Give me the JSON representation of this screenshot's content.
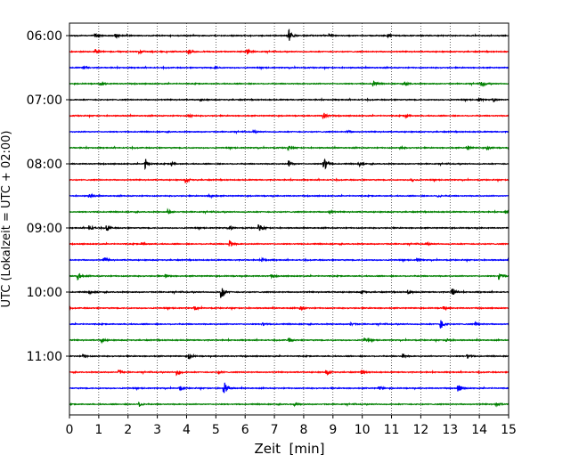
{
  "chart_data": {
    "type": "line",
    "title": "",
    "xlabel": "Zeit  [min]",
    "ylabel": "UTC (Lokalzeit = UTC + 02:00)",
    "xlim": [
      0,
      15
    ],
    "x_ticks": [
      0,
      1,
      2,
      3,
      4,
      5,
      6,
      7,
      8,
      9,
      10,
      11,
      12,
      13,
      14,
      15
    ],
    "y_tick_labels": [
      "06:00",
      "07:00",
      "08:00",
      "09:00",
      "10:00",
      "11:00"
    ],
    "trace_start_times": [
      "06:00",
      "06:15",
      "06:30",
      "06:45",
      "07:00",
      "07:15",
      "07:30",
      "07:45",
      "08:00",
      "08:15",
      "08:30",
      "08:45",
      "09:00",
      "09:15",
      "09:30",
      "09:45",
      "10:00",
      "10:15",
      "10:30",
      "10:45",
      "11:00",
      "11:15",
      "11:30",
      "11:45"
    ],
    "trace_colors": [
      "#000000",
      "#ff0000",
      "#0000ff",
      "#008000"
    ],
    "vertical_grid": true,
    "grid_style": "dotted",
    "events_min": [
      [
        [
          7.5,
          1.0
        ],
        [
          0.9,
          0.35
        ],
        [
          1.6,
          0.3
        ],
        [
          8.9,
          0.3
        ],
        [
          10.9,
          0.3
        ]
      ],
      [
        [
          0.9,
          0.45
        ],
        [
          6.1,
          0.4
        ],
        [
          4.1,
          0.3
        ],
        [
          2.4,
          0.25
        ]
      ],
      [
        [
          0.5,
          0.25
        ],
        [
          5.0,
          0.2
        ]
      ],
      [
        [
          10.4,
          0.55
        ],
        [
          14.1,
          0.5
        ],
        [
          1.1,
          0.3
        ],
        [
          11.5,
          0.3
        ]
      ],
      [
        [
          14.0,
          0.3
        ],
        [
          14.5,
          0.3
        ],
        [
          4.5,
          0.2
        ]
      ],
      [
        [
          8.7,
          0.55
        ],
        [
          11.5,
          0.3
        ],
        [
          4.1,
          0.25
        ]
      ],
      [
        [
          6.3,
          0.2
        ],
        [
          9.5,
          0.2
        ]
      ],
      [
        [
          13.6,
          0.35
        ],
        [
          14.3,
          0.3
        ],
        [
          7.5,
          0.3
        ],
        [
          11.3,
          0.25
        ]
      ],
      [
        [
          2.6,
          0.85
        ],
        [
          8.7,
          1.3
        ],
        [
          7.5,
          0.6
        ],
        [
          9.9,
          0.4
        ],
        [
          3.5,
          0.3
        ]
      ],
      [
        [
          4.0,
          0.35
        ],
        [
          11.7,
          0.25
        ]
      ],
      [
        [
          0.7,
          0.3
        ],
        [
          4.8,
          0.3
        ],
        [
          12.6,
          0.25
        ]
      ],
      [
        [
          3.4,
          0.35
        ],
        [
          8.9,
          0.3
        ],
        [
          14.9,
          0.3
        ]
      ],
      [
        [
          6.5,
          0.65
        ],
        [
          0.7,
          0.5
        ],
        [
          1.3,
          0.4
        ],
        [
          5.5,
          0.3
        ]
      ],
      [
        [
          5.5,
          0.6
        ],
        [
          2.5,
          0.3
        ],
        [
          12.2,
          0.25
        ]
      ],
      [
        [
          1.2,
          0.45
        ],
        [
          6.6,
          0.3
        ],
        [
          11.9,
          0.3
        ]
      ],
      [
        [
          0.3,
          0.6
        ],
        [
          14.7,
          0.55
        ],
        [
          3.3,
          0.3
        ],
        [
          6.9,
          0.25
        ]
      ],
      [
        [
          5.2,
          1.3
        ],
        [
          13.1,
          0.7
        ],
        [
          10.0,
          0.35
        ],
        [
          11.6,
          0.35
        ],
        [
          0.7,
          0.3
        ]
      ],
      [
        [
          7.9,
          0.35
        ],
        [
          4.3,
          0.3
        ],
        [
          12.8,
          0.3
        ]
      ],
      [
        [
          12.7,
          0.8
        ],
        [
          9.6,
          0.3
        ],
        [
          6.6,
          0.25
        ],
        [
          13.9,
          0.3
        ]
      ],
      [
        [
          1.1,
          0.35
        ],
        [
          7.5,
          0.35
        ],
        [
          10.1,
          0.35
        ],
        [
          12.9,
          0.3
        ]
      ],
      [
        [
          4.1,
          0.45
        ],
        [
          11.4,
          0.35
        ],
        [
          13.6,
          0.3
        ],
        [
          0.5,
          0.3
        ]
      ],
      [
        [
          3.7,
          0.5
        ],
        [
          5.1,
          0.35
        ],
        [
          8.8,
          0.35
        ],
        [
          10.0,
          0.3
        ],
        [
          1.7,
          0.3
        ]
      ],
      [
        [
          5.3,
          1.1
        ],
        [
          13.3,
          0.75
        ],
        [
          10.6,
          0.3
        ],
        [
          3.8,
          0.3
        ]
      ],
      [
        [
          2.4,
          0.4
        ],
        [
          14.6,
          0.3
        ],
        [
          7.7,
          0.25
        ]
      ]
    ]
  }
}
